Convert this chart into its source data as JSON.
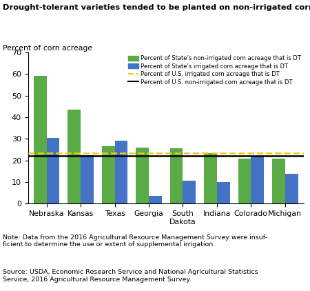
{
  "title": "Drought-tolerant varieties tended to be planted on non-irrigated corn fields",
  "ylabel": "Percent of corn acreage",
  "states": [
    "Nebraska",
    "Kansas",
    "Texas",
    "Georgia",
    "South\nDakota",
    "Indiana",
    "Colorado",
    "Michigan"
  ],
  "non_irrigated": [
    59.0,
    43.5,
    26.5,
    26.0,
    25.5,
    23.5,
    21.0,
    21.0
  ],
  "irrigated": [
    30.5,
    22.5,
    29.0,
    3.5,
    10.5,
    10.0,
    22.0,
    14.0
  ],
  "us_irrigated_line": 23.5,
  "us_non_irrigated_line": 22.0,
  "green_color": "#5aaa46",
  "blue_color": "#4472c4",
  "ylim": [
    0,
    70
  ],
  "yticks": [
    0,
    10,
    20,
    30,
    40,
    50,
    60,
    70
  ],
  "note_text": "Note: Data from the 2016 Agricultural Resource Management Survey were insuf-\nficient to determine the use or extent of supplemental irrigation.",
  "source_text": "Source: USDA, Economic Research Service and National Agricultural Statistics\nService, 2016 Agricultural Resource Management Survey.",
  "legend_labels": [
    "Percent of State’s non-irrigated corn acreage that is DT",
    "Percent of State’s irrigated corn acreage that is DT",
    "Percent of U.S. irrigated corn acreage that is DT",
    "Percent of U.S. non-irrigated corn acreage that is DT"
  ]
}
